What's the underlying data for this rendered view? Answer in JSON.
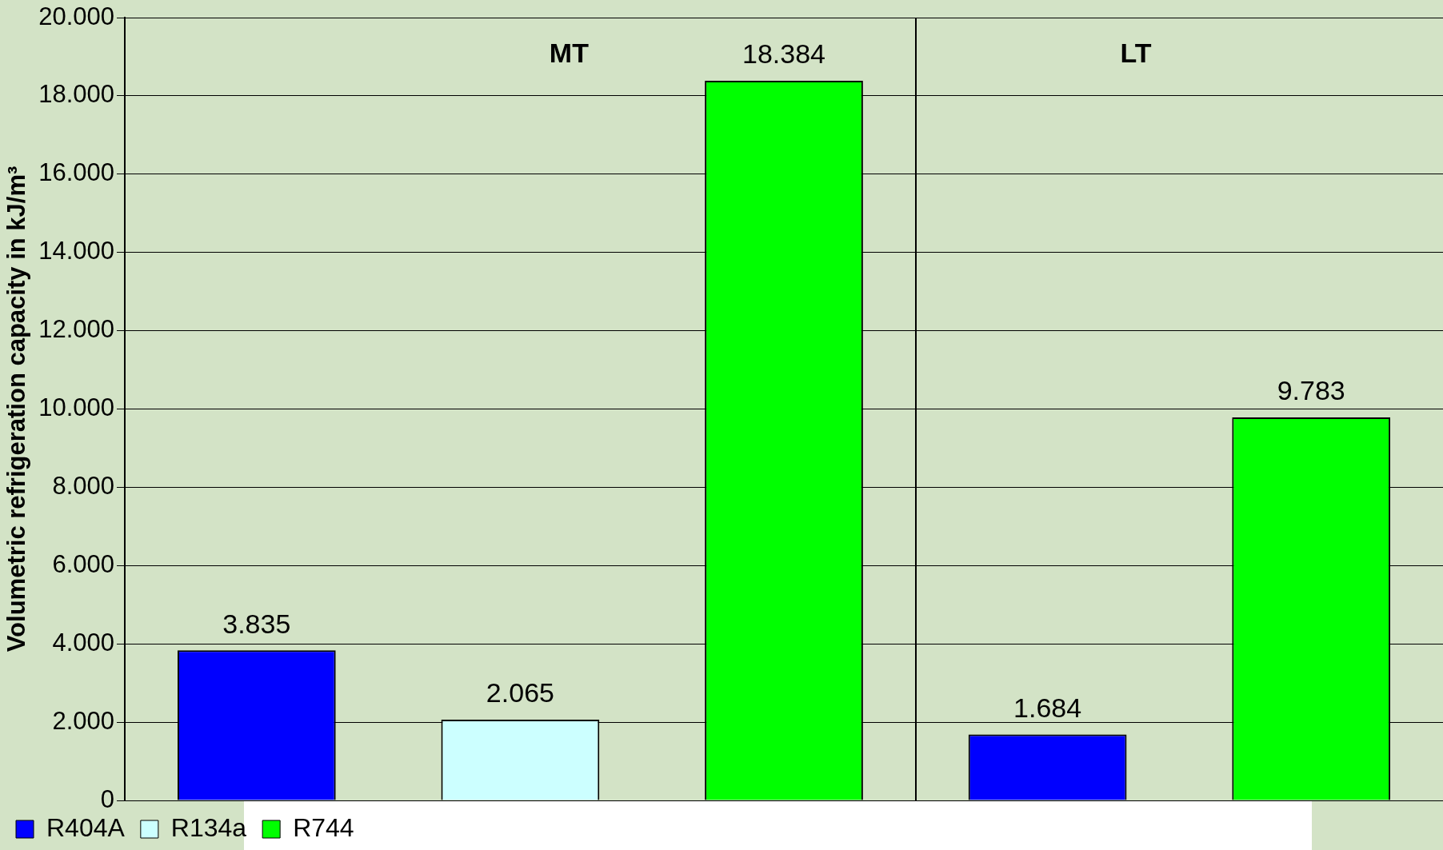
{
  "chart_data": {
    "type": "bar",
    "ylabel": "Volumetric refrigeration capacity in kJ/m³",
    "categories": [
      null,
      null,
      null,
      null,
      null
    ],
    "series": [
      {
        "name": "R404A",
        "color": "#0000ff",
        "values": [
          3835,
          null,
          null,
          1684,
          null
        ],
        "value_labels": [
          "3.835",
          null,
          null,
          "1.684",
          null
        ]
      },
      {
        "name": "R134a",
        "color": "#ccffff",
        "values": [
          null,
          2065,
          null,
          null,
          null
        ],
        "value_labels": [
          null,
          "2.065",
          null,
          null,
          null
        ]
      },
      {
        "name": "R744",
        "color": "#00ff00",
        "values": [
          null,
          null,
          18384,
          null,
          9783
        ],
        "value_labels": [
          null,
          null,
          "18.384",
          null,
          "9.783"
        ]
      }
    ],
    "annotations": [
      "MT",
      "LT"
    ],
    "ylim": [
      0,
      20000
    ],
    "yticks": [
      0,
      {
        "value": 2000,
        "label": "2.000"
      },
      {
        "value": 4000,
        "label": "4.000"
      },
      {
        "value": 6000,
        "label": "6.000"
      },
      {
        "value": 8000,
        "label": "8.000"
      },
      {
        "value": 10000,
        "label": "10.000"
      },
      {
        "value": 12000,
        "label": "12.000"
      },
      {
        "value": 14000,
        "label": "14.000"
      },
      {
        "value": 16000,
        "label": "16.000"
      },
      {
        "value": 18000,
        "label": "18.000"
      },
      {
        "value": 20000,
        "label": "20.000"
      }
    ],
    "grid": "y",
    "legend": "bottom",
    "tick_labels": "y"
  }
}
